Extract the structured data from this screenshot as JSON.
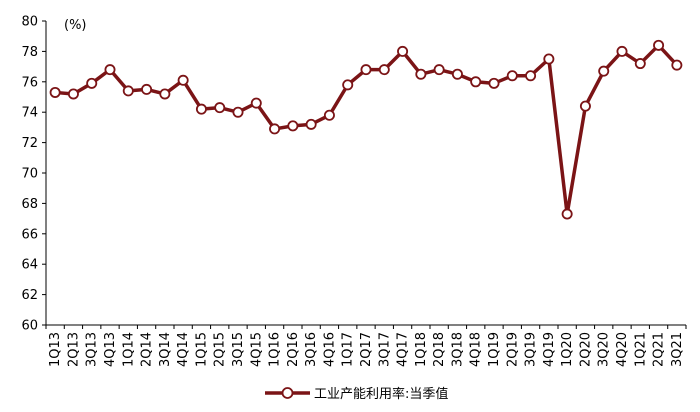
{
  "chart_data": {
    "type": "line",
    "unit_label": "(%)",
    "ylim": [
      60,
      80
    ],
    "yticks": [
      60,
      62,
      64,
      66,
      68,
      70,
      72,
      74,
      76,
      78,
      80
    ],
    "categories": [
      "1Q13",
      "2Q13",
      "3Q13",
      "4Q13",
      "1Q14",
      "2Q14",
      "3Q14",
      "4Q14",
      "1Q15",
      "2Q15",
      "3Q15",
      "4Q15",
      "1Q16",
      "2Q16",
      "3Q16",
      "4Q16",
      "1Q17",
      "2Q17",
      "3Q17",
      "4Q17",
      "1Q18",
      "2Q18",
      "3Q18",
      "4Q18",
      "1Q19",
      "2Q19",
      "3Q19",
      "4Q19",
      "1Q20",
      "2Q20",
      "3Q20",
      "4Q20",
      "1Q21",
      "2Q21",
      "3Q21"
    ],
    "series": [
      {
        "name": "工业产能利用率:当季值",
        "color": "#7b1416",
        "marker": "open-circle",
        "values": [
          75.3,
          75.2,
          75.9,
          76.8,
          75.4,
          75.5,
          75.2,
          76.1,
          74.2,
          74.3,
          74.0,
          74.6,
          72.9,
          73.1,
          73.2,
          73.8,
          75.8,
          76.8,
          76.8,
          78.0,
          76.5,
          76.8,
          76.5,
          76.0,
          75.9,
          76.4,
          76.4,
          77.5,
          67.3,
          74.4,
          76.7,
          78.0,
          77.2,
          78.4,
          77.1
        ]
      }
    ],
    "grid": false,
    "legend": "bottom-center"
  }
}
